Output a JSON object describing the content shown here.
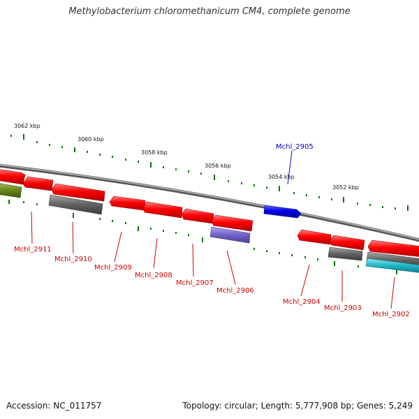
{
  "title": "Methylobacterium chloromethanicum CM4, complete genome",
  "accession": "Accession: NC_011757",
  "summary": "Topology: circular; Length: 5,777,908 bp; Genes: 5,249",
  "ruler_labels": [
    "3062 kbp",
    "3060 kbp",
    "3058 kbp",
    "3056 kbp",
    "3054 kbp",
    "3052 kbp"
  ],
  "gene_labels": [
    "Mchl_2905",
    "Mchl_2911",
    "Mchl_2910",
    "Mchl_2909",
    "Mchl_2908",
    "Mchl_2907",
    "Mchl_2906",
    "Mchl_2904",
    "Mchl_2903",
    "Mchl_2902"
  ],
  "colors": {
    "forward_gene": "#0000e6",
    "reverse_gene": "#ff0000",
    "label_forward": "#0000cc",
    "label_reverse": "#cc0000",
    "backbone": "#888888",
    "tick": "#007700",
    "gray_feature": "#666666",
    "purple_feature": "#7766cc",
    "olive_feature": "#6a8a1a",
    "teal_feature": "#22bbcc"
  }
}
